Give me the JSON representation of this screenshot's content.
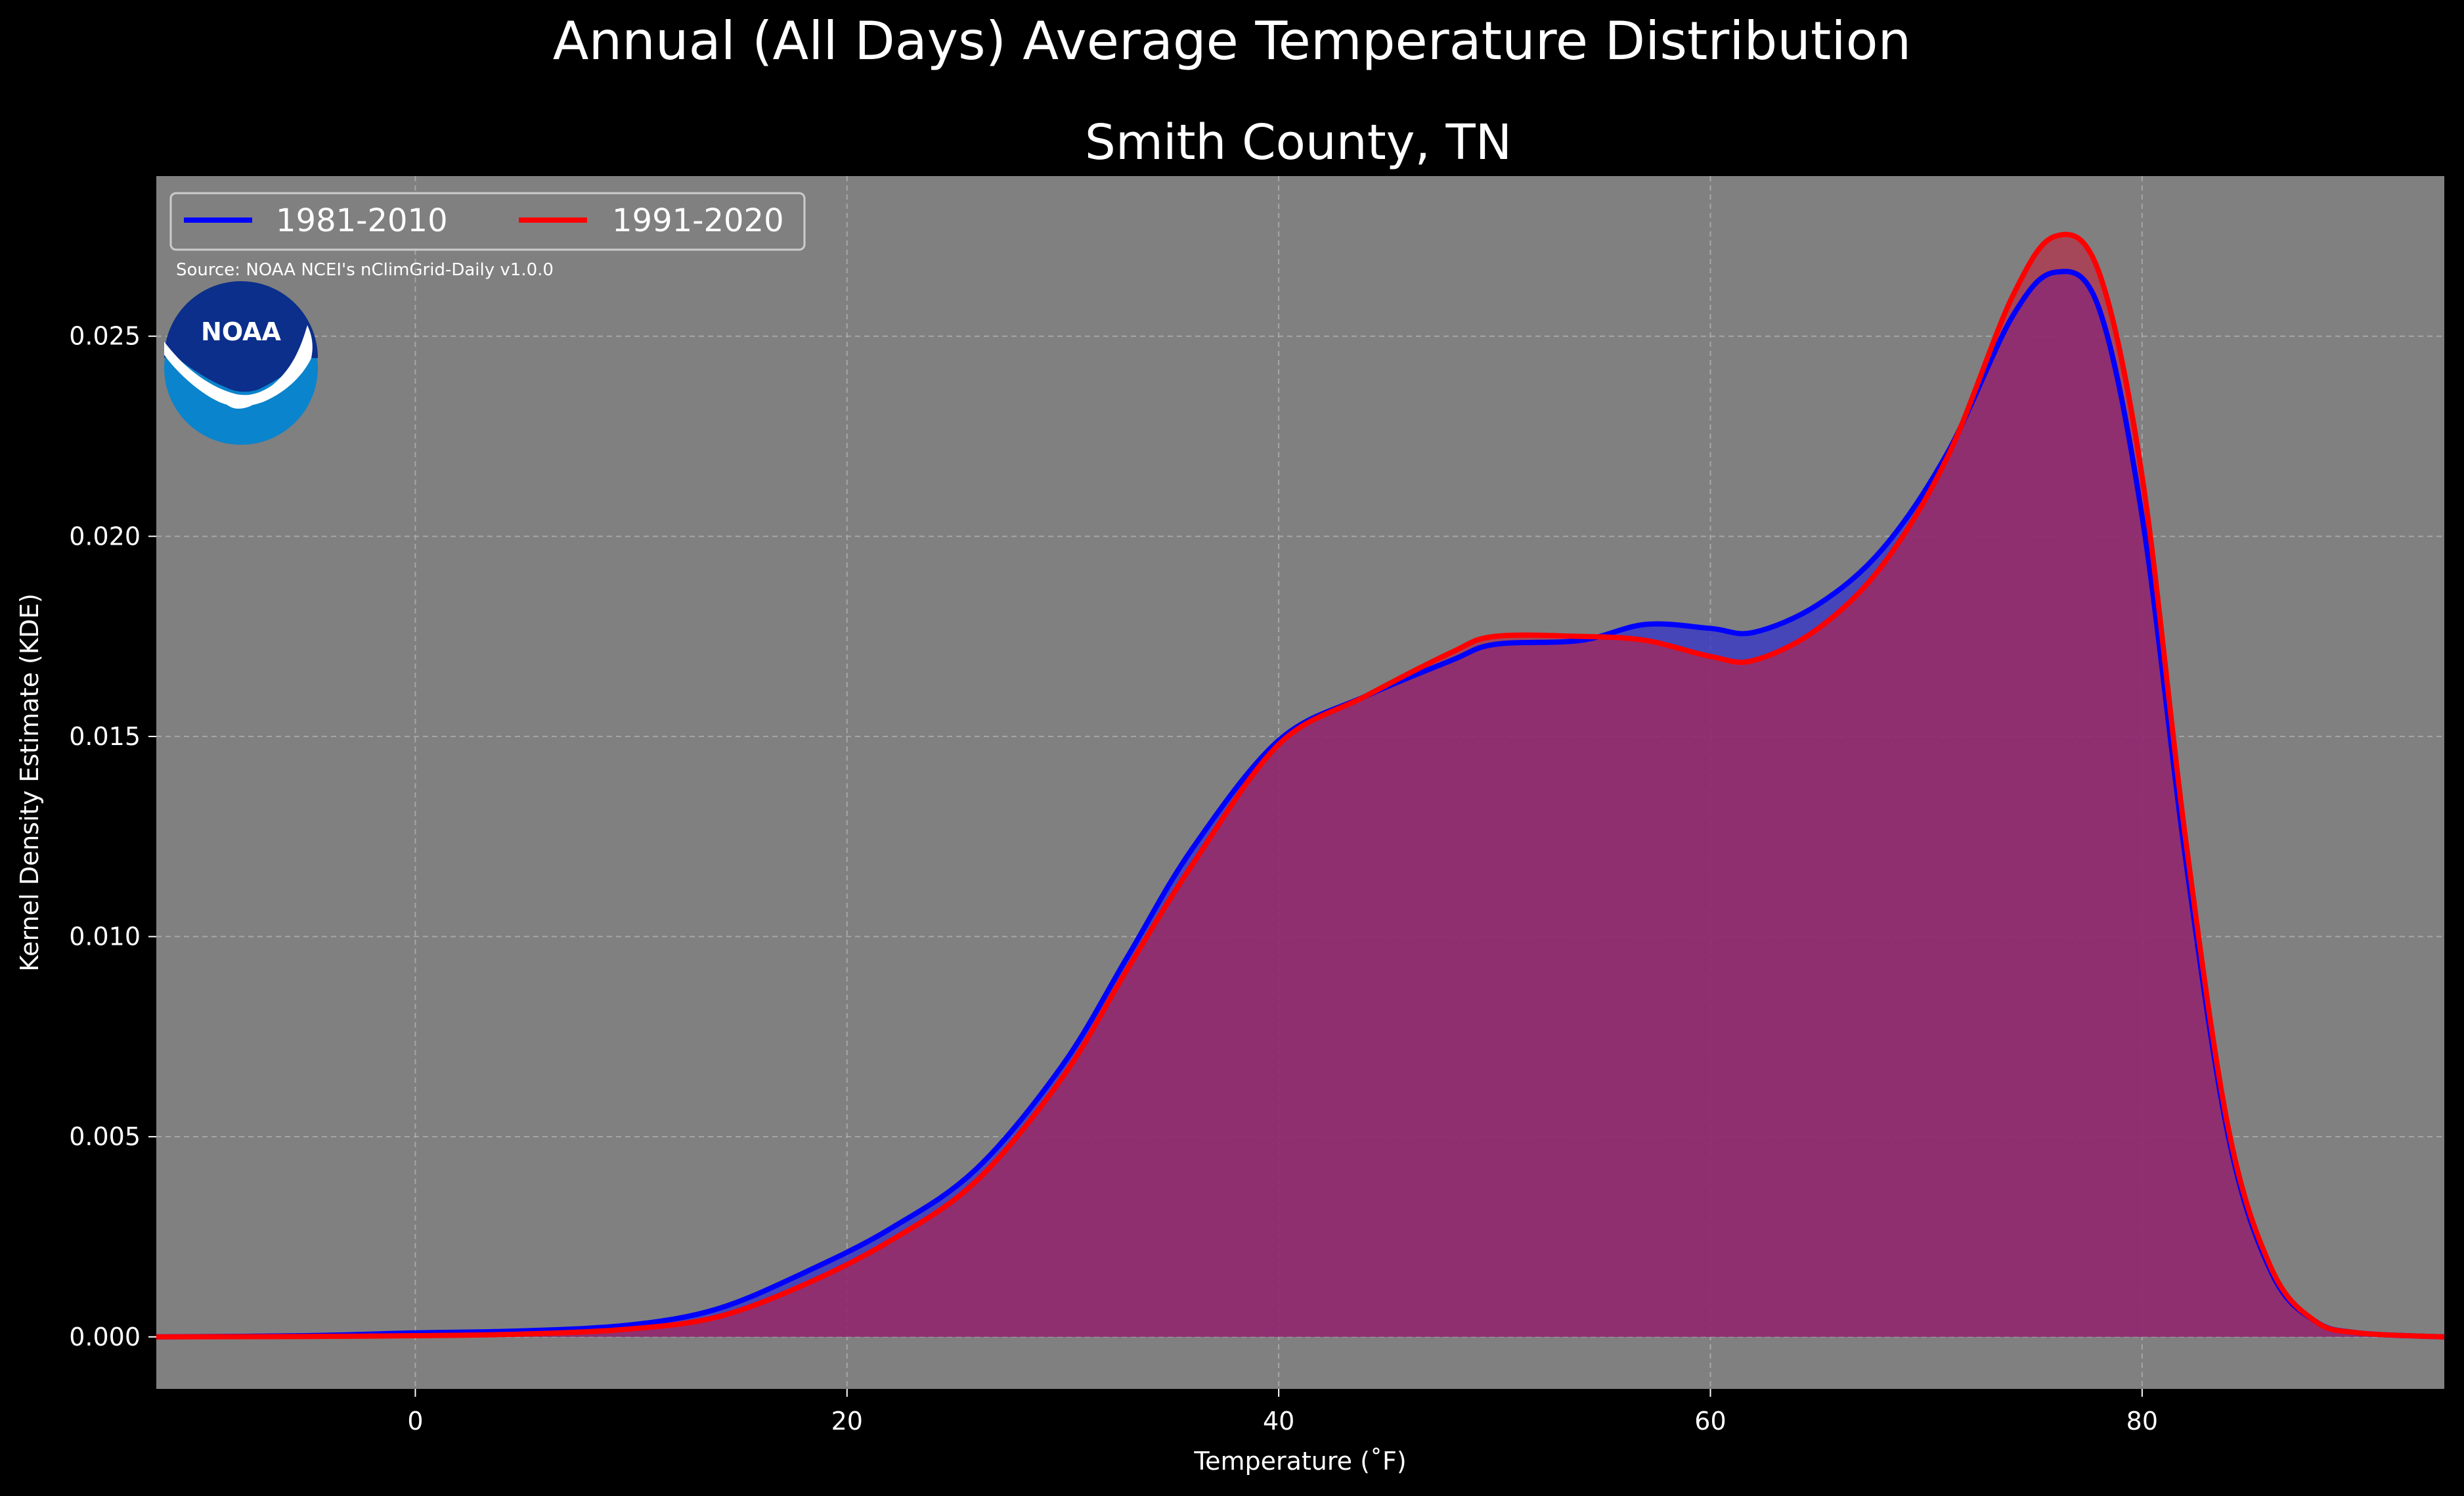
{
  "chart_data": {
    "type": "area",
    "suptitle": "Annual (All Days) Average Temperature Distribution",
    "title": "Smith County, TN",
    "xlabel": "Temperature (˚F)",
    "ylabel": "Kernel Density Estimate (KDE)",
    "xlim": [
      -12,
      94
    ],
    "ylim": [
      -0.0013,
      0.029
    ],
    "xticks": [
      0,
      20,
      40,
      60,
      80
    ],
    "yticks": [
      0.0,
      0.005,
      0.01,
      0.015,
      0.02,
      0.025
    ],
    "ytick_labels": [
      "0.000",
      "0.005",
      "0.010",
      "0.015",
      "0.020",
      "0.025"
    ],
    "grid": true,
    "background": "#808080",
    "legend_position": "top-left",
    "source_note": "Source: NOAA NCEI's nClimGrid-Daily v1.0.0",
    "logo_text": "NOAA",
    "series": [
      {
        "name": "1981-2010",
        "color": "#0000ff",
        "fill": "#3333cc",
        "x": [
          -12,
          -5,
          0,
          5,
          10,
          14,
          18,
          22,
          26,
          30,
          33,
          36,
          40,
          44,
          48,
          50,
          54,
          57,
          60,
          62,
          65,
          68,
          71,
          74,
          76,
          78,
          80,
          82,
          84,
          86,
          88,
          90,
          94
        ],
        "y": [
          0.0,
          3e-05,
          0.0001,
          0.00015,
          0.0003,
          0.0007,
          0.0016,
          0.0027,
          0.0042,
          0.0068,
          0.0095,
          0.0122,
          0.0149,
          0.016,
          0.0169,
          0.0173,
          0.0174,
          0.0178,
          0.0177,
          0.0176,
          0.0183,
          0.0197,
          0.0221,
          0.0255,
          0.0266,
          0.0257,
          0.0205,
          0.012,
          0.005,
          0.0016,
          0.0004,
          0.0001,
          0.0
        ]
      },
      {
        "name": "1991-2020",
        "color": "#ff0000",
        "fill": "#c02040",
        "x": [
          -12,
          -5,
          0,
          5,
          10,
          14,
          18,
          22,
          26,
          30,
          33,
          36,
          40,
          44,
          48,
          50,
          54,
          57,
          60,
          62,
          65,
          68,
          71,
          74,
          76,
          78,
          80,
          82,
          84,
          86,
          88,
          90,
          94
        ],
        "y": [
          0.0,
          1e-05,
          3e-05,
          7e-05,
          0.0002,
          0.0005,
          0.0013,
          0.0024,
          0.0039,
          0.0065,
          0.0092,
          0.0118,
          0.0148,
          0.016,
          0.0171,
          0.0175,
          0.0175,
          0.0174,
          0.017,
          0.0169,
          0.0177,
          0.0193,
          0.022,
          0.026,
          0.0275,
          0.0266,
          0.0215,
          0.0125,
          0.0052,
          0.0017,
          0.0004,
          0.0001,
          0.0
        ]
      }
    ]
  }
}
